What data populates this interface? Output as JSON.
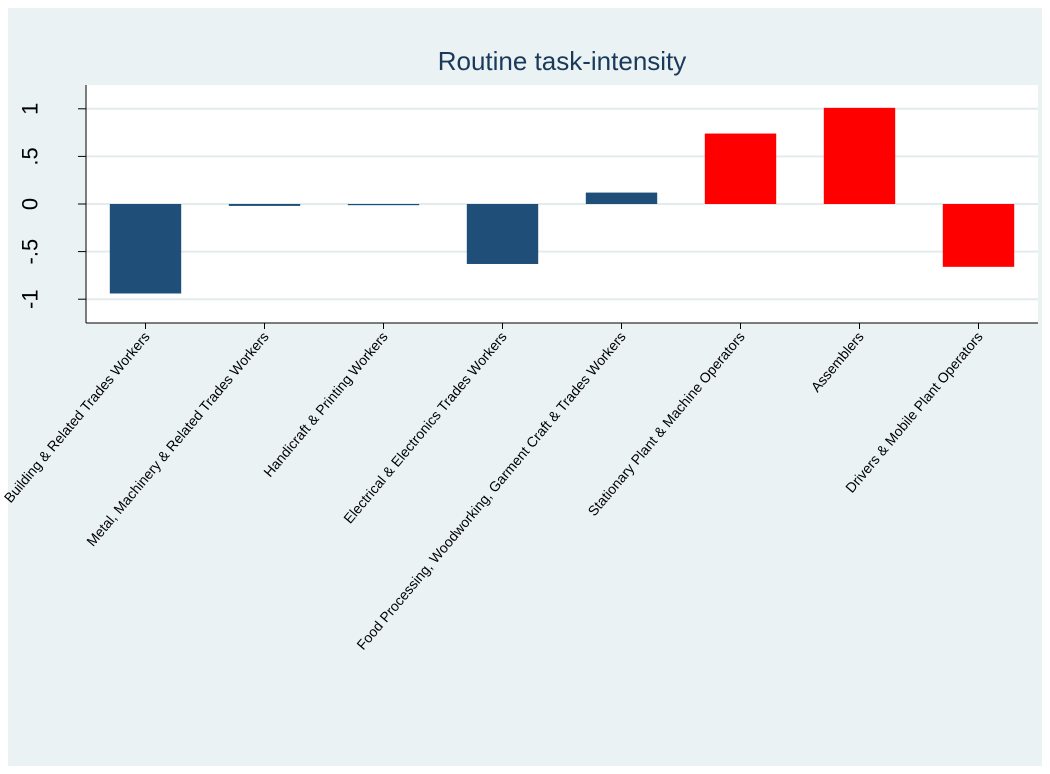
{
  "chart_data": {
    "type": "bar",
    "title": "Routine task-intensity",
    "xlabel": "",
    "ylabel": "",
    "categories": [
      "Building & Related Trades Workers",
      "Metal, Machinery & Related Trades Workers",
      "Handicraft & Printing Workers",
      "Electrical & Electronics Trades Workers",
      "Food Processing, Woodworking, Garment Craft & Trades Workers",
      "Stationary Plant & Machine Operators",
      "Assemblers",
      "Drivers & Mobile Plant Operators"
    ],
    "values": [
      -0.94,
      -0.02,
      -0.01,
      -0.63,
      0.12,
      0.74,
      1.01,
      -0.66
    ],
    "colors": [
      "#1f4e79",
      "#1f4e79",
      "#1f4e79",
      "#1f4e79",
      "#1f4e79",
      "#ff0000",
      "#ff0000",
      "#ff0000"
    ],
    "ylim": [
      -1.25,
      1.25
    ],
    "yticks": [
      -1,
      -0.5,
      0,
      0.5,
      1
    ],
    "ytick_labels": [
      "-1",
      "-.5",
      "0",
      ".5",
      "1"
    ],
    "grid": true,
    "legend": "none",
    "background_color": "#eaf2f3",
    "plot_background_color": "#ffffff"
  }
}
